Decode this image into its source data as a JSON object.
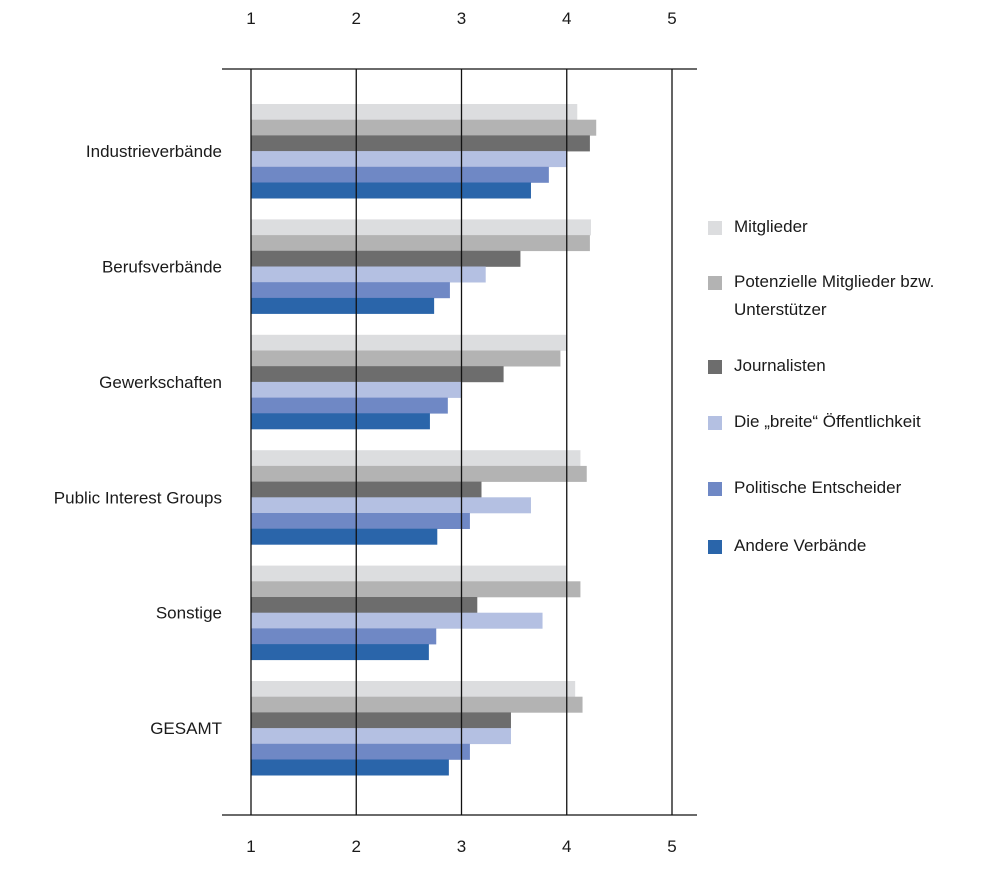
{
  "chart_data": {
    "type": "bar",
    "orientation": "horizontal",
    "title": "",
    "xlabel": "",
    "ylabel": "",
    "xlim": [
      1,
      5
    ],
    "xticks": [
      1,
      2,
      3,
      4,
      5
    ],
    "grid": true,
    "legend_position": "right",
    "categories": [
      "Industrieverbände",
      "Berufsverbände",
      "Gewerkschaften",
      "Public Interest Groups",
      "Sonstige",
      "GESAMT"
    ],
    "series": [
      {
        "name": "Mitglieder",
        "color": "#dcdddf",
        "values": [
          4.1,
          4.23,
          4.0,
          4.13,
          4.0,
          4.08
        ]
      },
      {
        "name": "Potenzielle Mitglieder bzw. Unterstützer",
        "color": "#b3b3b3",
        "values": [
          4.28,
          4.22,
          3.94,
          4.19,
          4.13,
          4.15
        ]
      },
      {
        "name": "Journalisten",
        "color": "#6d6d6d",
        "values": [
          4.22,
          3.56,
          3.4,
          3.19,
          3.15,
          3.47
        ]
      },
      {
        "name": "Die „breite“ Öffentlichkeit",
        "color": "#b4c0e2",
        "values": [
          4.0,
          3.23,
          3.0,
          3.66,
          3.77,
          3.47
        ]
      },
      {
        "name": "Politische Entscheider",
        "color": "#6f88c5",
        "values": [
          3.83,
          2.89,
          2.87,
          3.08,
          2.76,
          3.08
        ]
      },
      {
        "name": "Andere Verbände",
        "color": "#2a65aa",
        "values": [
          3.66,
          2.74,
          2.7,
          2.77,
          2.69,
          2.88
        ]
      }
    ]
  }
}
